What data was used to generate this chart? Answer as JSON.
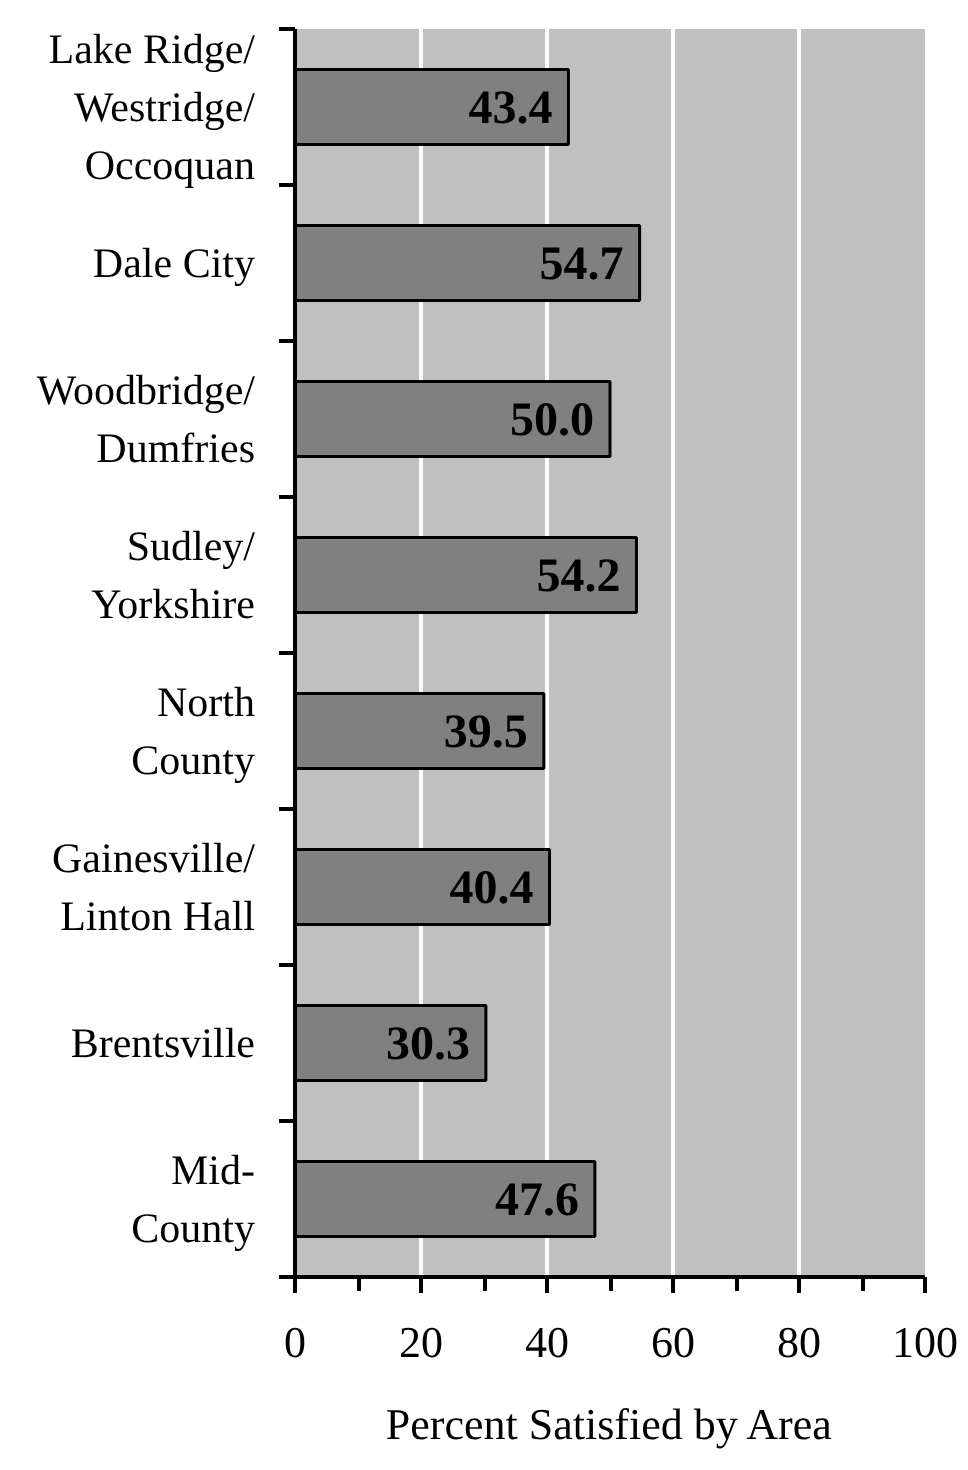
{
  "chart_data": {
    "type": "bar",
    "orientation": "horizontal",
    "categories": [
      "Lake Ridge/\nWestridge/\nOccoquan",
      "Dale City",
      "Woodbridge/\nDumfries",
      "Sudley/\nYorkshire",
      "North\nCounty",
      "Gainesville/\nLinton Hall",
      "Brentsville",
      "Mid-\nCounty"
    ],
    "values": [
      43.4,
      54.7,
      50.0,
      54.2,
      39.5,
      40.4,
      30.3,
      47.6
    ],
    "value_labels": [
      "43.4",
      "54.7",
      "50.0",
      "54.2",
      "39.5",
      "40.4",
      "30.3",
      "47.6"
    ],
    "color": "#808080",
    "xlabel": "Percent Satisfied by Area",
    "xlim": [
      0,
      100
    ],
    "xticks": [
      0,
      {
        "value": 10,
        "label": null
      },
      20,
      {
        "value": 30,
        "label": null
      },
      40,
      {
        "value": 50,
        "label": null
      },
      60,
      {
        "value": 70,
        "label": null
      },
      80,
      {
        "value": 90,
        "label": null
      },
      100
    ],
    "grid": "x"
  }
}
